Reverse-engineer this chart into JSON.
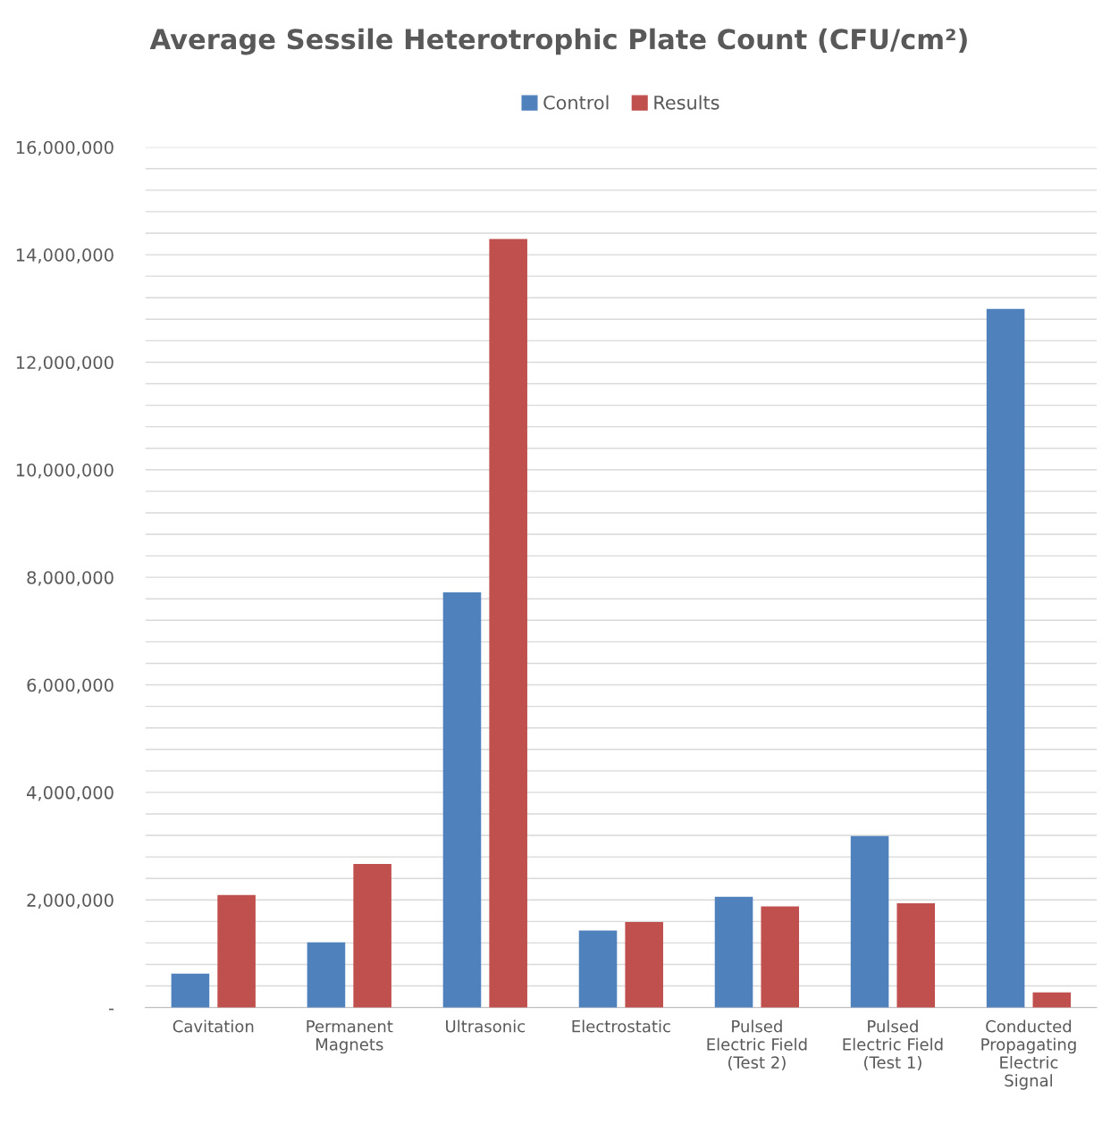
{
  "chart_data": {
    "type": "bar",
    "title": "Average Sessile Heterotrophic Plate Count (CFU/cm²)",
    "categories": [
      "Cavitation",
      "Permanent Magnets",
      "Ultrasonic",
      "Electrostatic",
      "Pulsed Electric Field (Test 2)",
      "Pulsed Electric Field (Test 1)",
      "Conducted Propagating Electric Signal"
    ],
    "series": [
      {
        "name": "Control",
        "color": "#4f81bd",
        "values": [
          630000,
          1210000,
          7720000,
          1430000,
          2060000,
          3190000,
          12990000
        ]
      },
      {
        "name": "Results",
        "color": "#c0504d",
        "values": [
          2090000,
          2670000,
          14290000,
          1590000,
          1880000,
          1940000,
          280000
        ]
      }
    ],
    "ylim": [
      0,
      16000000
    ],
    "yticks": [
      {
        "value": 0,
        "label": "-"
      },
      {
        "value": 400000,
        "label": null
      },
      {
        "value": 800000,
        "label": null
      },
      {
        "value": 1200000,
        "label": null
      },
      {
        "value": 1600000,
        "label": null
      },
      {
        "value": 2000000,
        "label": "2,000,000"
      },
      {
        "value": 2400000,
        "label": null
      },
      {
        "value": 2800000,
        "label": null
      },
      {
        "value": 3200000,
        "label": null
      },
      {
        "value": 3600000,
        "label": null
      },
      {
        "value": 4000000,
        "label": "4,000,000"
      },
      {
        "value": 4400000,
        "label": null
      },
      {
        "value": 4800000,
        "label": null
      },
      {
        "value": 5200000,
        "label": null
      },
      {
        "value": 5600000,
        "label": null
      },
      {
        "value": 6000000,
        "label": "6,000,000"
      },
      {
        "value": 6400000,
        "label": null
      },
      {
        "value": 6800000,
        "label": null
      },
      {
        "value": 7200000,
        "label": null
      },
      {
        "value": 7600000,
        "label": null
      },
      {
        "value": 8000000,
        "label": "8,000,000"
      },
      {
        "value": 8400000,
        "label": null
      },
      {
        "value": 8800000,
        "label": null
      },
      {
        "value": 9200000,
        "label": null
      },
      {
        "value": 9600000,
        "label": null
      },
      {
        "value": 10000000,
        "label": "10,000,000"
      },
      {
        "value": 10400000,
        "label": null
      },
      {
        "value": 10800000,
        "label": null
      },
      {
        "value": 11200000,
        "label": null
      },
      {
        "value": 11600000,
        "label": null
      },
      {
        "value": 12000000,
        "label": "12,000,000"
      },
      {
        "value": 12400000,
        "label": null
      },
      {
        "value": 12800000,
        "label": null
      },
      {
        "value": 13200000,
        "label": null
      },
      {
        "value": 13600000,
        "label": null
      },
      {
        "value": 14000000,
        "label": "14,000,000"
      },
      {
        "value": 14400000,
        "label": null
      },
      {
        "value": 14800000,
        "label": null
      },
      {
        "value": 15200000,
        "label": null
      },
      {
        "value": 15600000,
        "label": null
      },
      {
        "value": 16000000,
        "label": "16,000,000"
      }
    ],
    "grid": "y",
    "legend": "top"
  }
}
